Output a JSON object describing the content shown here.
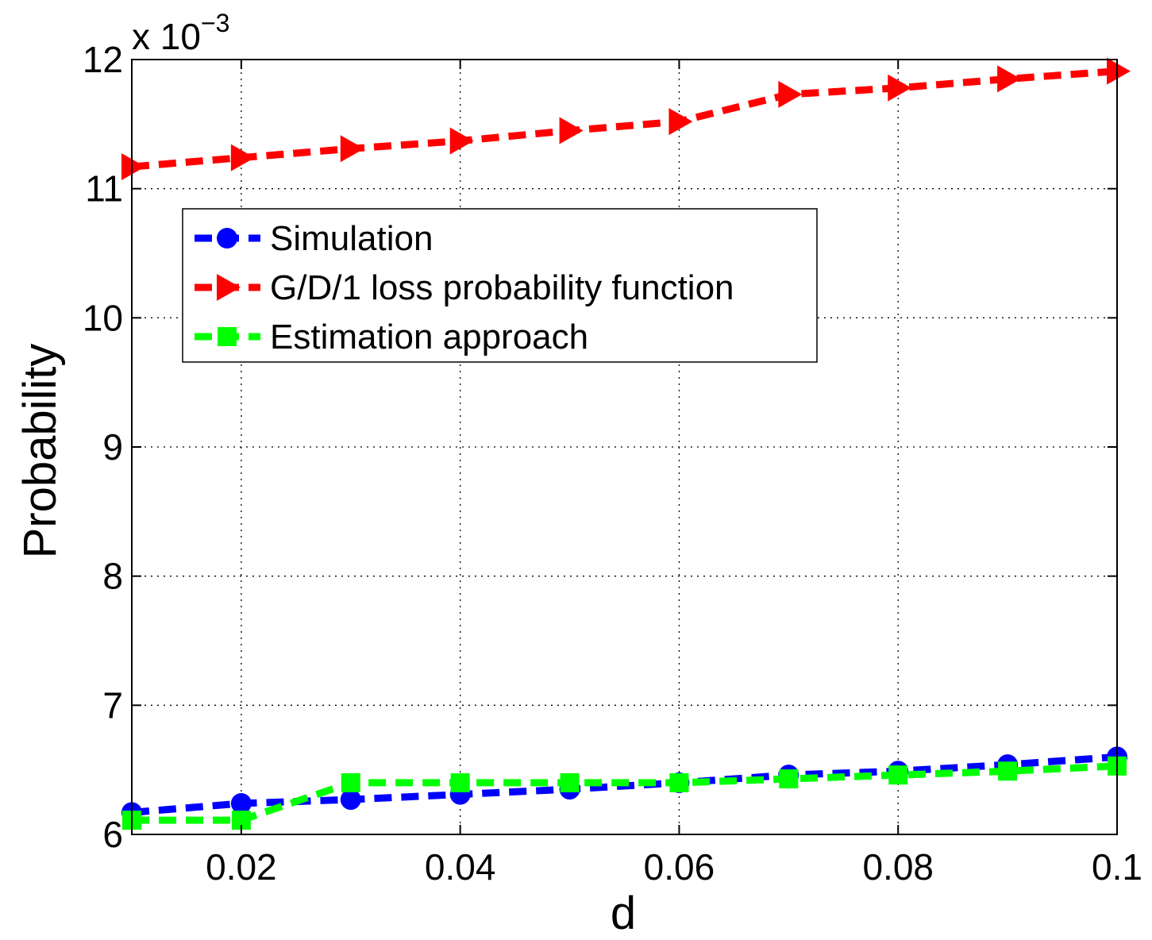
{
  "chart_data": {
    "type": "line",
    "title": "",
    "xlabel": "d",
    "ylabel": "Probability",
    "exponent_prefix": "x 10",
    "exponent_power": "−3",
    "xlim": [
      0.01,
      0.1
    ],
    "ylim": [
      6,
      12
    ],
    "grid": true,
    "legend_position": "upper-left",
    "x_ticks": [
      0.02,
      0.04,
      0.06,
      0.08,
      0.1
    ],
    "x_tick_labels": [
      "0.02",
      "0.04",
      "0.06",
      "0.08",
      "0.1"
    ],
    "y_ticks": [
      6,
      7,
      8,
      9,
      10,
      11,
      12
    ],
    "y_tick_labels": [
      "6",
      "7",
      "8",
      "9",
      "10",
      "11",
      "12"
    ],
    "x": [
      0.01,
      0.02,
      0.03,
      0.04,
      0.05,
      0.06,
      0.07,
      0.08,
      0.09,
      0.1
    ],
    "series": [
      {
        "name": "Simulation",
        "color": "#0000ff",
        "marker": "circle",
        "values": [
          6.17,
          6.24,
          6.27,
          6.31,
          6.35,
          6.4,
          6.46,
          6.49,
          6.54,
          6.6
        ]
      },
      {
        "name": "G/D/1 loss probability function",
        "color": "#ff0000",
        "marker": "triangle-right",
        "values": [
          11.17,
          11.24,
          11.31,
          11.37,
          11.45,
          11.52,
          11.73,
          11.78,
          11.85,
          11.91
        ]
      },
      {
        "name": "Estimation approach",
        "color": "#00ff00",
        "marker": "square",
        "values": [
          6.11,
          6.11,
          6.4,
          6.4,
          6.4,
          6.4,
          6.43,
          6.46,
          6.49,
          6.53
        ]
      }
    ]
  }
}
